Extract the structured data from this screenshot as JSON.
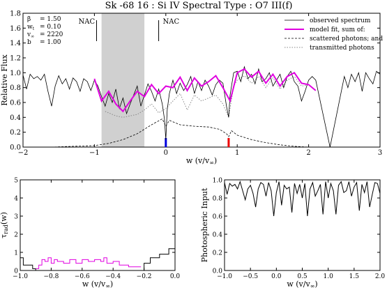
{
  "figure": {
    "title": "Sk -68 16 : Si IV      Spectral Type : O7 III(f)"
  },
  "chart_data": [
    {
      "type": "line",
      "id": "main",
      "xlabel": "w (v/v∞)",
      "ylabel": "Relative Flux",
      "xlim": [
        -2,
        3
      ],
      "ylim": [
        0,
        1.8
      ],
      "xticks": [
        -2,
        -1,
        0,
        1,
        2,
        3
      ],
      "xtick_labels": [
        "−2",
        "−1",
        "0",
        "1",
        "2",
        "3"
      ],
      "yticks": [
        0,
        0.2,
        0.4,
        0.6,
        0.8,
        1.0,
        1.2,
        1.4,
        1.6,
        1.8
      ],
      "ytick_labels": [
        "0.0",
        "0.2",
        "0.4",
        "0.6",
        "0.8",
        "1.0",
        "1.2",
        "1.4",
        "1.6",
        "1.8"
      ],
      "params": [
        {
          "sym": "β",
          "sub": "",
          "val": "=  1.50"
        },
        {
          "sym": "w",
          "sub": "t",
          "val": "=  0.10"
        },
        {
          "sym": "v",
          "sub": "∞",
          "val": "=  2220"
        },
        {
          "sym": "b",
          "sub": "",
          "val": "=  1.00"
        }
      ],
      "nac_labels": [
        {
          "x": -0.97,
          "text": "NAC"
        },
        {
          "x": -0.1,
          "text": "NAC"
        }
      ],
      "shaded_region": [
        -0.9,
        -0.3
      ],
      "markers": [
        {
          "x": 0.0,
          "color": "#0000dd"
        },
        {
          "x": 0.88,
          "color": "#ee0000"
        }
      ],
      "colors": {
        "model": "#e000e0",
        "shade": "#d0d0d0"
      },
      "legend": {
        "position": "top-right",
        "entries": [
          {
            "label": "observed spectrum",
            "style": "solid-thin"
          },
          {
            "label": "model fit, sum of:",
            "style": "solid-magenta"
          },
          {
            "label": "scattered photons; and",
            "style": "dashed"
          },
          {
            "label": "transmitted photons",
            "style": "dotted"
          }
        ]
      },
      "series": [
        {
          "name": "observed spectrum",
          "x": [
            -2.0,
            -1.95,
            -1.9,
            -1.85,
            -1.8,
            -1.75,
            -1.7,
            -1.65,
            -1.6,
            -1.55,
            -1.5,
            -1.45,
            -1.4,
            -1.35,
            -1.3,
            -1.25,
            -1.2,
            -1.15,
            -1.1,
            -1.05,
            -1.0,
            -0.95,
            -0.9,
            -0.85,
            -0.8,
            -0.75,
            -0.7,
            -0.65,
            -0.6,
            -0.55,
            -0.5,
            -0.45,
            -0.4,
            -0.35,
            -0.3,
            -0.25,
            -0.2,
            -0.15,
            -0.1,
            -0.05,
            -0.02,
            0.0,
            0.02,
            0.05,
            0.1,
            0.15,
            0.2,
            0.25,
            0.3,
            0.35,
            0.4,
            0.45,
            0.5,
            0.55,
            0.6,
            0.65,
            0.7,
            0.75,
            0.8,
            0.85,
            0.88,
            0.9,
            0.95,
            1.0,
            1.05,
            1.1,
            1.15,
            1.2,
            1.25,
            1.3,
            1.35,
            1.4,
            1.45,
            1.5,
            1.55,
            1.6,
            1.65,
            1.7,
            1.75,
            1.8,
            1.85,
            1.9,
            1.95,
            2.0,
            2.05,
            2.1,
            2.3,
            2.5,
            2.55,
            2.6,
            2.65,
            2.7,
            2.75,
            2.8,
            2.85,
            2.9,
            2.95,
            3.0
          ],
          "y": [
            0.97,
            0.78,
            0.98,
            0.92,
            0.95,
            0.9,
            0.98,
            0.75,
            0.55,
            0.82,
            0.96,
            0.85,
            0.92,
            0.78,
            0.93,
            0.88,
            0.75,
            0.92,
            0.88,
            0.76,
            0.9,
            0.82,
            0.68,
            0.55,
            0.72,
            0.6,
            0.78,
            0.52,
            0.66,
            0.45,
            0.58,
            0.7,
            0.82,
            0.55,
            0.7,
            0.85,
            0.75,
            0.62,
            0.78,
            0.58,
            0.38,
            0.1,
            0.5,
            0.72,
            0.9,
            0.72,
            0.86,
            0.76,
            0.84,
            0.95,
            0.72,
            0.88,
            0.76,
            0.9,
            0.82,
            0.7,
            0.84,
            0.9,
            0.86,
            0.55,
            0.4,
            0.7,
            1.0,
            1.02,
            0.88,
            1.08,
            0.92,
            0.98,
            0.85,
            1.05,
            0.88,
            0.92,
            1.0,
            0.82,
            0.9,
            0.98,
            0.8,
            0.95,
            1.02,
            0.88,
            0.82,
            0.62,
            0.75,
            0.9,
            0.95,
            0.9,
            0.0,
            0.95,
            0.8,
            0.98,
            0.88,
            1.0,
            0.75,
            1.0,
            0.92,
            0.85,
            1.02,
            0.98
          ]
        },
        {
          "name": "model fit, sum of:",
          "x": [
            -1.0,
            -0.9,
            -0.8,
            -0.7,
            -0.6,
            -0.5,
            -0.4,
            -0.3,
            -0.2,
            -0.1,
            0.0,
            0.1,
            0.2,
            0.3,
            0.4,
            0.5,
            0.6,
            0.7,
            0.8,
            0.9,
            1.0,
            1.1,
            1.2,
            1.3,
            1.4,
            1.5,
            1.6,
            1.7,
            1.8,
            1.9,
            2.0,
            2.1
          ],
          "y": [
            0.92,
            0.62,
            0.75,
            0.58,
            0.48,
            0.62,
            0.75,
            0.68,
            0.84,
            0.72,
            0.82,
            0.8,
            0.94,
            0.76,
            0.93,
            0.82,
            0.88,
            0.96,
            0.8,
            0.62,
            1.0,
            1.05,
            0.94,
            1.02,
            0.86,
            0.98,
            0.82,
            0.95,
            1.0,
            0.86,
            0.84,
            0.76
          ]
        },
        {
          "name": "scattered photons; and",
          "x": [
            -1.95,
            -1.6,
            -1.3,
            -1.0,
            -0.8,
            -0.6,
            -0.4,
            -0.2,
            -0.05,
            0.0,
            0.05,
            0.2,
            0.4,
            0.6,
            0.75,
            0.85,
            0.88,
            0.92,
            1.0,
            1.2,
            1.4,
            1.6,
            1.8,
            2.0,
            2.1
          ],
          "y": [
            0.0,
            0.0,
            0.01,
            0.02,
            0.05,
            0.1,
            0.18,
            0.3,
            0.38,
            0.28,
            0.36,
            0.3,
            0.28,
            0.27,
            0.24,
            0.18,
            0.14,
            0.22,
            0.16,
            0.1,
            0.06,
            0.03,
            0.01,
            0.0,
            0.0
          ]
        },
        {
          "name": "transmitted photons",
          "x": [
            -0.85,
            -0.7,
            -0.6,
            -0.5,
            -0.4,
            -0.3,
            -0.2,
            -0.1,
            0.0,
            0.1,
            0.2,
            0.3,
            0.4,
            0.5,
            0.6,
            0.7,
            0.8,
            0.88,
            0.95,
            1.0,
            1.1,
            1.2,
            1.3,
            1.4,
            1.5,
            1.6,
            1.7,
            1.8,
            1.9,
            2.0
          ],
          "y": [
            0.48,
            0.42,
            0.4,
            0.42,
            0.44,
            0.5,
            0.58,
            0.46,
            0.52,
            0.62,
            0.72,
            0.5,
            0.7,
            0.62,
            0.66,
            0.7,
            0.58,
            0.4,
            0.82,
            0.9,
            0.96,
            0.86,
            0.95,
            0.8,
            0.93,
            0.78,
            0.9,
            0.95,
            0.82,
            0.84
          ]
        }
      ]
    },
    {
      "type": "line",
      "id": "tau",
      "xlabel": "w (v/v∞)",
      "ylabel": "τrad(w)",
      "xlim": [
        -1.0,
        0.0
      ],
      "ylim": [
        0,
        5
      ],
      "xticks": [
        -1.0,
        -0.8,
        -0.6,
        -0.4,
        -0.2,
        0.0
      ],
      "xtick_labels": [
        "−1.0",
        "−0.8",
        "−0.6",
        "−0.4",
        "−0.2",
        "0.0"
      ],
      "yticks": [
        0,
        1,
        2,
        3,
        4,
        5
      ],
      "ytick_labels": [
        "0",
        "1",
        "2",
        "3",
        "4",
        "5"
      ],
      "series": [
        {
          "name": "black",
          "color": "#000000",
          "x": [
            -1.0,
            -0.98,
            -0.98,
            -0.92,
            -0.92,
            -0.9,
            -0.9,
            -0.2,
            -0.2,
            -0.16,
            -0.16,
            -0.1,
            -0.1,
            -0.04,
            -0.04,
            0.0
          ],
          "y": [
            0.7,
            0.7,
            0.3,
            0.3,
            0.1,
            0.1,
            0.0,
            0.0,
            0.4,
            0.4,
            0.7,
            0.7,
            0.9,
            0.9,
            1.2,
            1.2
          ]
        },
        {
          "name": "magenta",
          "color": "#e000e0",
          "x": [
            -0.9,
            -0.88,
            -0.88,
            -0.86,
            -0.86,
            -0.84,
            -0.84,
            -0.82,
            -0.82,
            -0.8,
            -0.8,
            -0.78,
            -0.78,
            -0.76,
            -0.76,
            -0.72,
            -0.72,
            -0.68,
            -0.68,
            -0.64,
            -0.64,
            -0.6,
            -0.6,
            -0.56,
            -0.56,
            -0.52,
            -0.52,
            -0.48,
            -0.48,
            -0.46,
            -0.46,
            -0.44,
            -0.44,
            -0.4,
            -0.4,
            -0.36,
            -0.36,
            -0.3,
            -0.3,
            -0.22
          ],
          "y": [
            0.1,
            0.1,
            0.3,
            0.3,
            0.6,
            0.6,
            0.5,
            0.5,
            0.7,
            0.7,
            0.4,
            0.4,
            0.6,
            0.6,
            0.5,
            0.5,
            0.4,
            0.4,
            0.6,
            0.6,
            0.4,
            0.4,
            0.6,
            0.6,
            0.5,
            0.5,
            0.6,
            0.6,
            0.5,
            0.5,
            0.7,
            0.7,
            0.4,
            0.4,
            0.5,
            0.5,
            0.3,
            0.3,
            0.2,
            0.2
          ]
        }
      ]
    },
    {
      "type": "line",
      "id": "phot",
      "xlabel": "w (v/v∞)",
      "ylabel": "Photospheric Input",
      "xlim": [
        -1.0,
        2.0
      ],
      "ylim": [
        0.0,
        1.0
      ],
      "xticks": [
        -1.0,
        -0.5,
        0.0,
        0.5,
        1.0,
        1.5,
        2.0
      ],
      "xtick_labels": [
        "−1.0",
        "−0.5",
        "0.0",
        "0.5",
        "1.0",
        "1.5",
        "2.0"
      ],
      "yticks": [
        0.0,
        0.2,
        0.4,
        0.6,
        0.8,
        1.0
      ],
      "ytick_labels": [
        "0.0",
        "0.2",
        "0.4",
        "0.6",
        "0.8",
        "1.0"
      ],
      "series": [
        {
          "name": "photospheric input",
          "color": "#000000",
          "x": [
            -1.0,
            -0.95,
            -0.9,
            -0.85,
            -0.8,
            -0.75,
            -0.7,
            -0.65,
            -0.6,
            -0.55,
            -0.5,
            -0.45,
            -0.4,
            -0.35,
            -0.3,
            -0.25,
            -0.2,
            -0.15,
            -0.1,
            -0.05,
            0.0,
            0.05,
            0.1,
            0.15,
            0.2,
            0.25,
            0.3,
            0.35,
            0.4,
            0.45,
            0.5,
            0.55,
            0.6,
            0.65,
            0.7,
            0.75,
            0.8,
            0.85,
            0.9,
            0.95,
            1.0,
            1.05,
            1.1,
            1.15,
            1.2,
            1.25,
            1.3,
            1.35,
            1.4,
            1.45,
            1.5,
            1.55,
            1.6,
            1.65,
            1.7,
            1.75,
            1.8,
            1.85,
            1.9,
            1.95,
            2.0
          ],
          "y": [
            0.97,
            0.84,
            0.96,
            0.93,
            0.95,
            0.9,
            0.98,
            0.88,
            0.78,
            0.9,
            0.94,
            0.85,
            0.7,
            0.9,
            0.97,
            0.95,
            0.82,
            0.97,
            0.88,
            0.6,
            0.86,
            0.98,
            0.72,
            0.94,
            0.9,
            0.92,
            0.64,
            0.96,
            0.85,
            0.95,
            0.8,
            0.96,
            0.6,
            0.9,
            0.97,
            0.82,
            0.88,
            0.95,
            0.62,
            0.98,
            0.8,
            0.96,
            0.88,
            0.62,
            0.94,
            0.98,
            0.86,
            0.88,
            0.98,
            0.82,
            0.92,
            0.97,
            0.66,
            0.95,
            0.86,
            0.98,
            0.7,
            0.84,
            0.97,
            0.96,
            0.85
          ]
        }
      ]
    }
  ]
}
